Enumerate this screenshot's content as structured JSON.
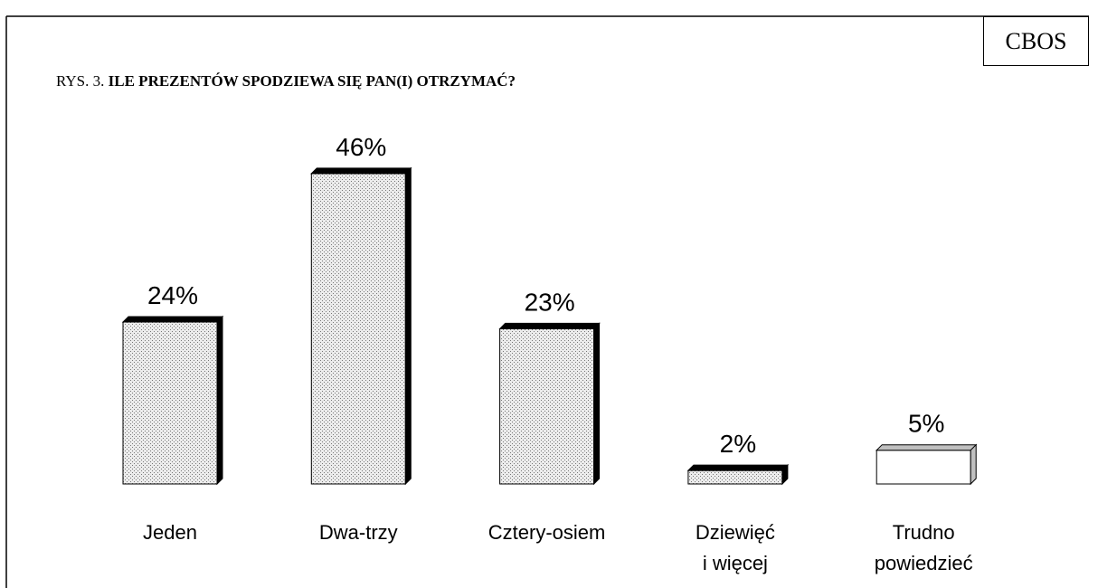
{
  "source": "CBOS",
  "chart_data": {
    "type": "bar",
    "label": "RYS. 3.",
    "title": "ILE PREZENTÓW SPODZIEWA SIĘ PAN(I) OTRZYMAĆ?",
    "categories": [
      "Jeden",
      "Dwa-trzy",
      "Cztery-osiem",
      "Dziewięć\ni więcej",
      "Trudno\npowiedzieć"
    ],
    "values": [
      24,
      46,
      23,
      2,
      5
    ],
    "value_labels": [
      "24%",
      "46%",
      "23%",
      "2%",
      "5%"
    ],
    "colors": [
      "#e4e4e4",
      "#e4e4e4",
      "#e4e4e4",
      "#e4e4e4",
      "#ffffff"
    ],
    "edge_colors": [
      "#000000",
      "#000000",
      "#000000",
      "#000000",
      "#c0c0c0"
    ],
    "hatch": [
      true,
      true,
      true,
      true,
      false
    ]
  }
}
